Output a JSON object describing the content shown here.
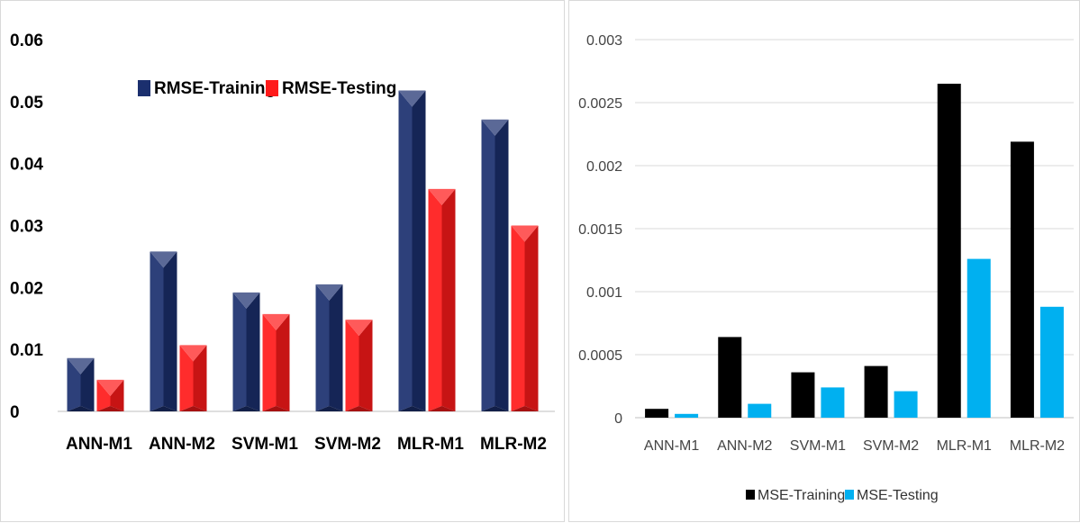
{
  "chart_data": [
    {
      "type": "bar",
      "style": "3d-pyramid-shaded",
      "categories": [
        "ANN-M1",
        "ANN-M2",
        "SVM-M1",
        "SVM-M2",
        "MLR-M1",
        "MLR-M2"
      ],
      "series": [
        {
          "name": "RMSE-Training",
          "color": "#1b2f6e",
          "values": [
            0.0086,
            0.0258,
            0.0192,
            0.0205,
            0.0518,
            0.0471
          ]
        },
        {
          "name": "RMSE-Testing",
          "color": "#ff1a1a",
          "values": [
            0.0051,
            0.0107,
            0.0157,
            0.0148,
            0.0359,
            0.03
          ]
        }
      ],
      "yticks": [
        "0",
        "0.01",
        "0.02",
        "0.03",
        "0.04",
        "0.05",
        "0.06"
      ],
      "ylim": [
        0,
        0.06
      ],
      "grid": false,
      "legend": "top-center"
    },
    {
      "type": "bar",
      "categories": [
        "ANN-M1",
        "ANN-M2",
        "SVM-M1",
        "SVM-M2",
        "MLR-M1",
        "MLR-M2"
      ],
      "series": [
        {
          "name": "MSE-Training",
          "color": "#000000",
          "values": [
            7e-05,
            0.00064,
            0.00036,
            0.00041,
            0.00265,
            0.00219
          ]
        },
        {
          "name": "MSE-Testing",
          "color": "#00b0f0",
          "values": [
            3e-05,
            0.00011,
            0.00024,
            0.00021,
            0.00126,
            0.00088
          ]
        }
      ],
      "yticks": [
        "0",
        "0.0005",
        "0.001",
        "0.0015",
        "0.002",
        "0.0025",
        "0.003"
      ],
      "ylim": [
        0,
        0.003
      ],
      "grid": true,
      "legend": "bottom-center"
    }
  ]
}
